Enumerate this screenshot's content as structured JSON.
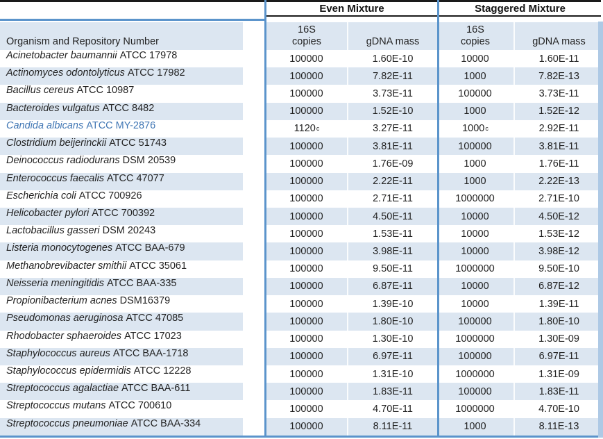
{
  "colors": {
    "stripe": "#DCE6F1",
    "rule-blue": "#5B94CB",
    "band-blue": "#AEC9E5",
    "rule-black": "#1A1A1A",
    "accent": "#4076B4"
  },
  "table": {
    "groups": [
      {
        "label": "Even Mixture"
      },
      {
        "label": "Staggered Mixture"
      }
    ],
    "sub": {
      "organism": "Organism and Repository Number",
      "s16": "16S",
      "copies": "copies",
      "mass": "gDNA mass"
    },
    "rows": [
      {
        "organism_italic": "Acinetobacter baumannii",
        "organism_plain": "ATCC 17978",
        "even_copies": "100000",
        "even_mass": "1.60E-10",
        "stag_copies": "10000",
        "stag_mass": "1.60E-11"
      },
      {
        "organism_italic": "Actinomyces odontolyticus",
        "organism_plain": "ATCC 17982",
        "even_copies": "100000",
        "even_mass": "7.82E-11",
        "stag_copies": "1000",
        "stag_mass": "7.82E-13"
      },
      {
        "organism_italic": "Bacillus cereus",
        "organism_plain": "ATCC 10987",
        "even_copies": "100000",
        "even_mass": "3.73E-11",
        "stag_copies": "100000",
        "stag_mass": "3.73E-11"
      },
      {
        "organism_italic": "Bacteroides vulgatus",
        "organism_plain": "ATCC 8482",
        "even_copies": "100000",
        "even_mass": "1.52E-10",
        "stag_copies": "1000",
        "stag_mass": "1.52E-12"
      },
      {
        "organism_italic": "Candida albicans",
        "organism_plain": "ATCC MY-2876",
        "even_copies": "1120",
        "even_copies_sup": "c",
        "even_mass": "3.27E-11",
        "stag_copies": "1000",
        "stag_copies_sup": "c",
        "stag_mass": "2.92E-11",
        "highlight": true
      },
      {
        "organism_italic": "Clostridium beijerinckii",
        "organism_plain": "ATCC 51743",
        "even_copies": "100000",
        "even_mass": "3.81E-11",
        "stag_copies": "100000",
        "stag_mass": "3.81E-11"
      },
      {
        "organism_italic": "Deinococcus radiodurans",
        "organism_plain": "DSM 20539",
        "even_copies": "100000",
        "even_mass": "1.76E-09",
        "stag_copies": "1000",
        "stag_mass": "1.76E-11"
      },
      {
        "organism_italic": "Enterococcus faecalis",
        "organism_plain": "ATCC 47077",
        "even_copies": "100000",
        "even_mass": "2.22E-11",
        "stag_copies": "1000",
        "stag_mass": "2.22E-13"
      },
      {
        "organism_italic": "Escherichia coli",
        "organism_plain": "ATCC 700926",
        "even_copies": "100000",
        "even_mass": "2.71E-11",
        "stag_copies": "1000000",
        "stag_mass": "2.71E-10"
      },
      {
        "organism_italic": "Helicobacter pylori",
        "organism_plain": "ATCC 700392",
        "even_copies": "100000",
        "even_mass": "4.50E-11",
        "stag_copies": "10000",
        "stag_mass": "4.50E-12"
      },
      {
        "organism_italic": "Lactobacillus gasseri",
        "organism_plain": "DSM 20243",
        "even_copies": "100000",
        "even_mass": "1.53E-11",
        "stag_copies": "10000",
        "stag_mass": "1.53E-12"
      },
      {
        "organism_italic": "Listeria monocytogenes",
        "organism_plain": "ATCC BAA-679",
        "even_copies": "100000",
        "even_mass": "3.98E-11",
        "stag_copies": "10000",
        "stag_mass": "3.98E-12"
      },
      {
        "organism_italic": "Methanobrevibacter smithii",
        "organism_plain": "ATCC 35061",
        "even_copies": "100000",
        "even_mass": "9.50E-11",
        "stag_copies": "1000000",
        "stag_mass": "9.50E-10"
      },
      {
        "organism_italic": "Neisseria meningitidis",
        "organism_plain": "ATCC BAA-335",
        "even_copies": "100000",
        "even_mass": "6.87E-11",
        "stag_copies": "10000",
        "stag_mass": "6.87E-12"
      },
      {
        "organism_italic": "Propionibacterium acnes",
        "organism_plain": "DSM16379",
        "even_copies": "100000",
        "even_mass": "1.39E-10",
        "stag_copies": "10000",
        "stag_mass": "1.39E-11"
      },
      {
        "organism_italic": "Pseudomonas aeruginosa",
        "organism_plain": "ATCC 47085",
        "even_copies": "100000",
        "even_mass": "1.80E-10",
        "stag_copies": "100000",
        "stag_mass": "1.80E-10"
      },
      {
        "organism_italic": "Rhodobacter sphaeroides",
        "organism_plain": "ATCC 17023",
        "even_copies": "100000",
        "even_mass": "1.30E-10",
        "stag_copies": "1000000",
        "stag_mass": "1.30E-09"
      },
      {
        "organism_italic": "Staphylococcus aureus",
        "organism_plain": "ATCC BAA-1718",
        "even_copies": "100000",
        "even_mass": "6.97E-11",
        "stag_copies": "100000",
        "stag_mass": "6.97E-11"
      },
      {
        "organism_italic": "Staphylococcus epidermidis",
        "organism_plain": "ATCC 12228",
        "even_copies": "100000",
        "even_mass": "1.31E-10",
        "stag_copies": "1000000",
        "stag_mass": "1.31E-09"
      },
      {
        "organism_italic": "Streptococcus agalactiae",
        "organism_plain": "ATCC BAA-611",
        "even_copies": "100000",
        "even_mass": "1.83E-11",
        "stag_copies": "100000",
        "stag_mass": "1.83E-11"
      },
      {
        "organism_italic": "Streptococcus mutans",
        "organism_plain": "ATCC 700610",
        "even_copies": "100000",
        "even_mass": "4.70E-11",
        "stag_copies": "1000000",
        "stag_mass": "4.70E-10"
      },
      {
        "organism_italic": "Streptococcus pneumoniae",
        "organism_plain": "ATCC BAA-334",
        "even_copies": "100000",
        "even_mass": "8.11E-11",
        "stag_copies": "1000",
        "stag_mass": "8.11E-13"
      }
    ]
  }
}
